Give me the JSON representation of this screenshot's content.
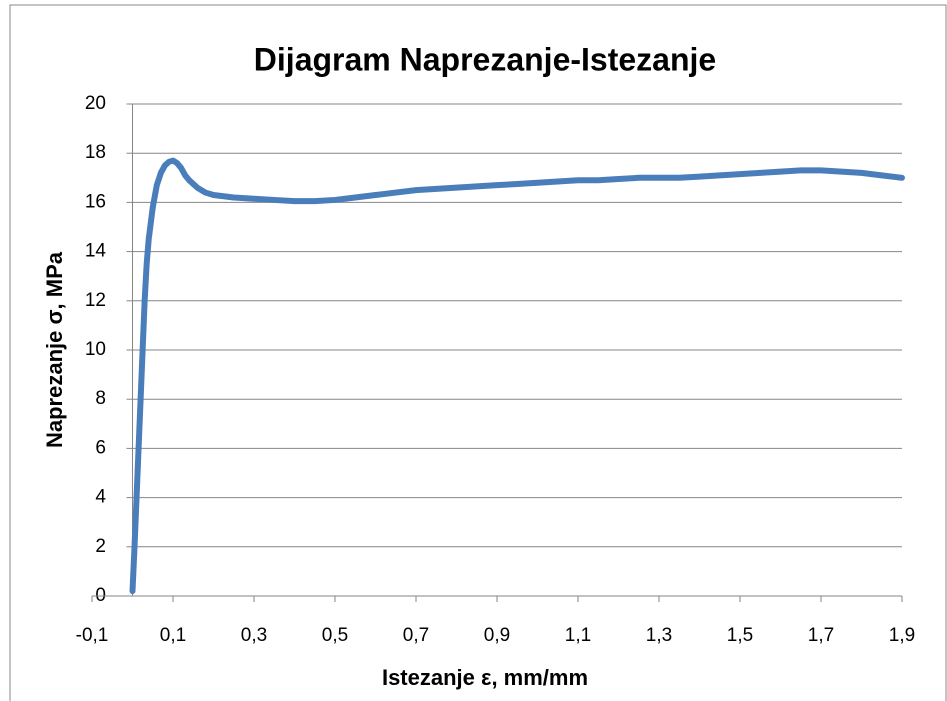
{
  "chart_data": {
    "type": "line",
    "title": "Dijagram Naprezanje-Istezanje",
    "xlabel": "Istezanje ε, mm/mm",
    "ylabel": "Naprezanje σ, MPa",
    "xlim": [
      -0.1,
      1.9
    ],
    "ylim": [
      0,
      20
    ],
    "xticks": [
      {
        "value": -0.1,
        "label": "-0,1"
      },
      {
        "value": 0.1,
        "label": "0,1"
      },
      {
        "value": 0.3,
        "label": "0,3"
      },
      {
        "value": 0.5,
        "label": "0,5"
      },
      {
        "value": 0.7,
        "label": "0,7"
      },
      {
        "value": 0.9,
        "label": "0,9"
      },
      {
        "value": 1.1,
        "label": "1,1"
      },
      {
        "value": 1.3,
        "label": "1,3"
      },
      {
        "value": 1.5,
        "label": "1,5"
      },
      {
        "value": 1.7,
        "label": "1,7"
      },
      {
        "value": 1.9,
        "label": "1,9"
      }
    ],
    "yticks": [
      0,
      2,
      4,
      6,
      8,
      10,
      12,
      14,
      16,
      18,
      20
    ],
    "grid": true,
    "series": [
      {
        "color": "#4a7ebb",
        "x": [
          0,
          0.005,
          0.01,
          0.015,
          0.02,
          0.025,
          0.03,
          0.035,
          0.04,
          0.05,
          0.06,
          0.07,
          0.08,
          0.09,
          0.1,
          0.11,
          0.12,
          0.13,
          0.14,
          0.16,
          0.18,
          0.2,
          0.25,
          0.3,
          0.35,
          0.4,
          0.45,
          0.5,
          0.55,
          0.6,
          0.65,
          0.7,
          0.75,
          0.8,
          0.85,
          0.9,
          0.95,
          1.0,
          1.05,
          1.1,
          1.15,
          1.2,
          1.25,
          1.3,
          1.35,
          1.4,
          1.45,
          1.5,
          1.55,
          1.6,
          1.65,
          1.7,
          1.75,
          1.8,
          1.85,
          1.9
        ],
        "values": [
          0.2,
          2,
          4,
          6,
          8,
          10,
          12,
          13.5,
          14.5,
          15.8,
          16.7,
          17.2,
          17.5,
          17.65,
          17.7,
          17.6,
          17.4,
          17.1,
          16.9,
          16.6,
          16.4,
          16.3,
          16.2,
          16.15,
          16.1,
          16.05,
          16.05,
          16.1,
          16.2,
          16.3,
          16.4,
          16.5,
          16.55,
          16.6,
          16.65,
          16.7,
          16.75,
          16.8,
          16.85,
          16.9,
          16.9,
          16.95,
          17,
          17,
          17,
          17.05,
          17.1,
          17.15,
          17.2,
          17.25,
          17.3,
          17.3,
          17.25,
          17.2,
          17.1,
          17
        ]
      }
    ]
  }
}
